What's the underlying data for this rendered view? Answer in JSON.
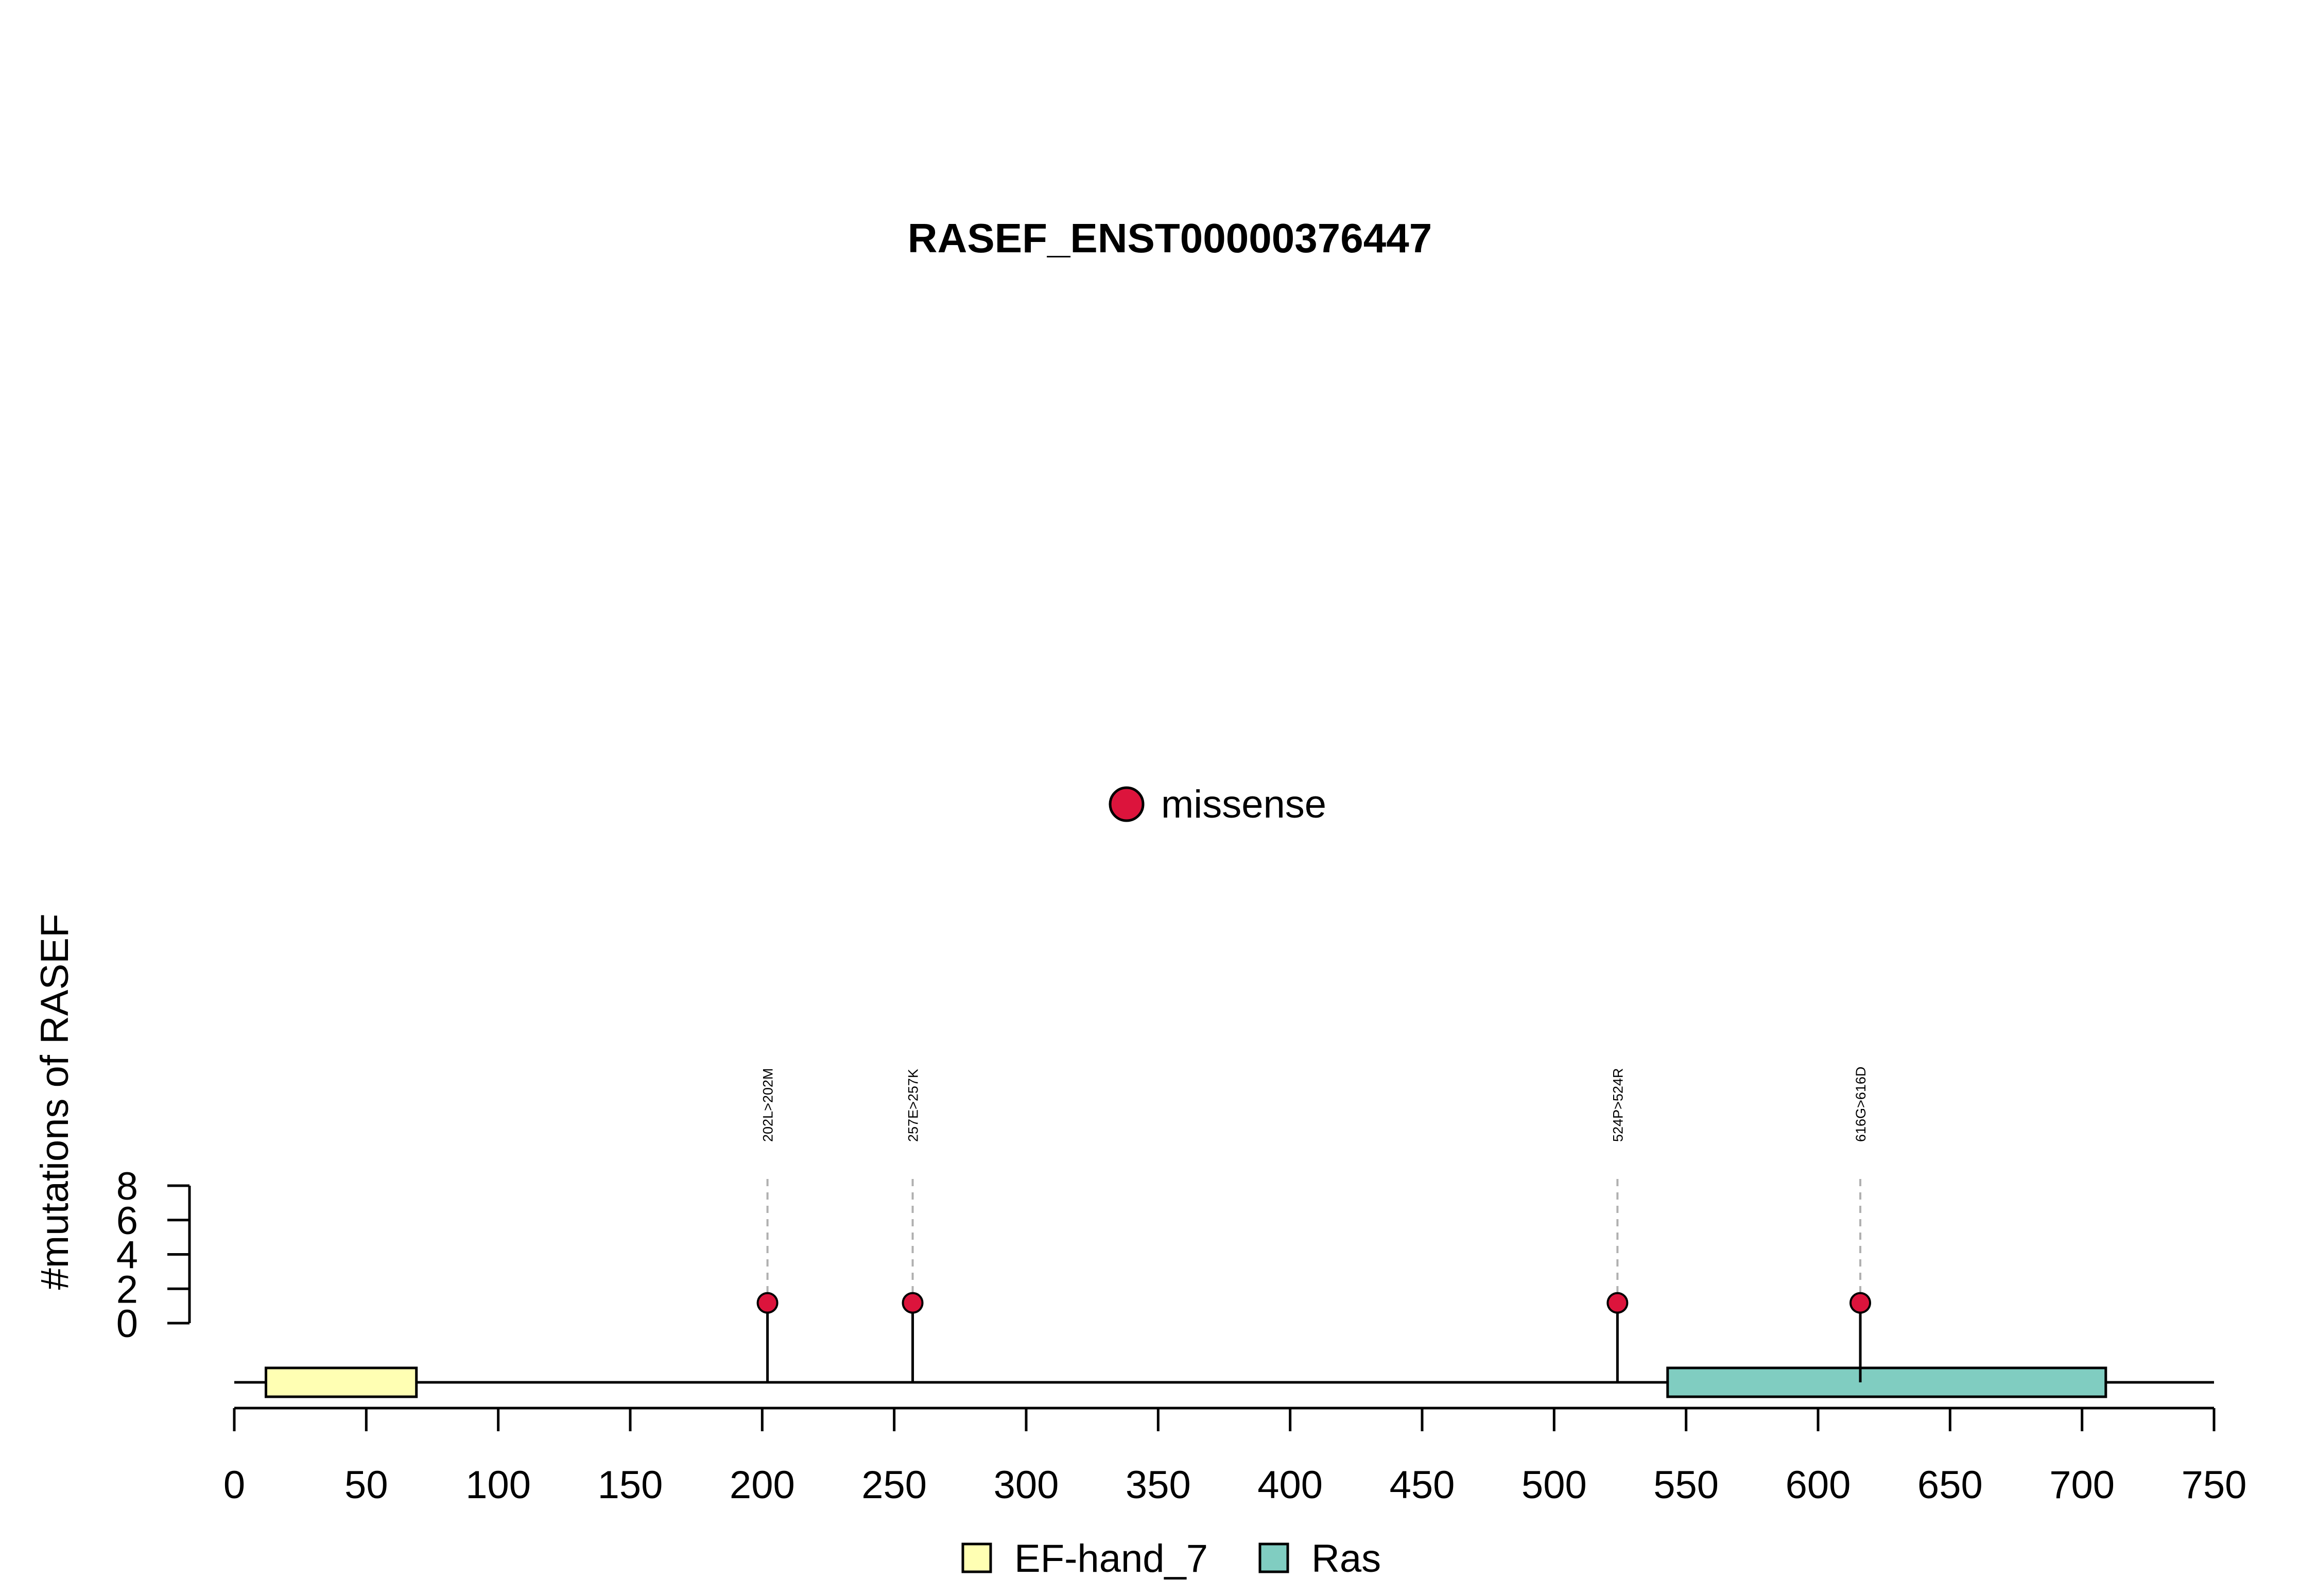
{
  "chart_data": {
    "type": "lollipop",
    "title": "RASEF_ENST00000376447",
    "ylabel": "#mutations of RASEF",
    "xlabel": "",
    "xlim": [
      0,
      750
    ],
    "x_ticks": [
      0,
      50,
      100,
      150,
      200,
      250,
      300,
      350,
      400,
      450,
      500,
      550,
      600,
      650,
      700,
      750
    ],
    "y_ticks": [
      0,
      2,
      4,
      6,
      8
    ],
    "ylim": [
      0,
      8
    ],
    "protein_length": 750,
    "mutation_legend": [
      {
        "label": "missense",
        "color": "#DC143C"
      }
    ],
    "mutations": [
      {
        "position": 202,
        "label": "202L>202M",
        "count": 1,
        "type": "missense"
      },
      {
        "position": 257,
        "label": "257E>257K",
        "count": 1,
        "type": "missense"
      },
      {
        "position": 524,
        "label": "524P>524R",
        "count": 1,
        "type": "missense"
      },
      {
        "position": 616,
        "label": "616G>616D",
        "count": 1,
        "type": "missense"
      }
    ],
    "domains": [
      {
        "name": "EF-hand_7",
        "start": 12,
        "end": 69,
        "color": "#FFFFB3"
      },
      {
        "name": "Ras",
        "start": 543,
        "end": 709,
        "color": "#80CDC1"
      }
    ],
    "grid": false
  }
}
